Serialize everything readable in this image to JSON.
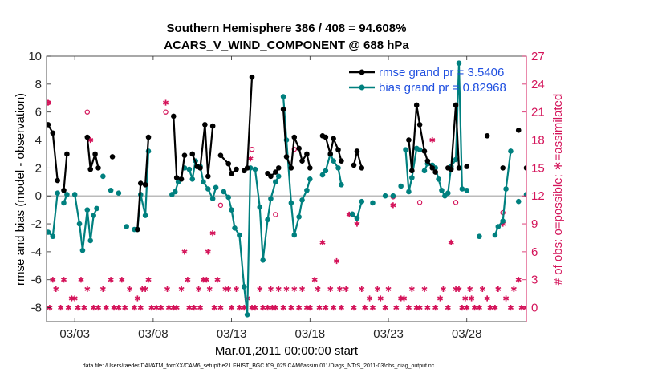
{
  "chart_data": {
    "type": "line",
    "title": "Southern Hemisphere 386 / 408 = 94.608%",
    "subtitle": "ACARS_V_WIND_COMPONENT @ 688 hPa",
    "xlabel": "Mar.01,2011 00:00:00 start",
    "ylabel": "rmse and bias (model - observation)",
    "y2label": "# of obs: o=possible; ∗=assimilated",
    "footnote": "data file: /Users/raeder/DAI/ATM_forcXX/CAM6_setup/f.e21.FHIST_BGC.f09_025.CAM6assim.011/Diags_NTrS_2011-03/obs_diag_output.nc",
    "xlim": [
      1.2,
      31.8
    ],
    "ylim": [
      -9,
      10
    ],
    "y2lim": [
      -1.5,
      27
    ],
    "x_tick_labels": [
      "03/03",
      "03/08",
      "03/13",
      "03/18",
      "03/23",
      "03/28"
    ],
    "x_ticks": [
      3,
      8,
      13,
      18,
      23,
      28
    ],
    "y_ticks": [
      -8,
      -6,
      -4,
      -2,
      0,
      2,
      4,
      6,
      8,
      10
    ],
    "y2_ticks": [
      0,
      3,
      6,
      9,
      12,
      15,
      18,
      21,
      24,
      27
    ],
    "zero_line": 0,
    "legend_position": "top-right",
    "colors": {
      "rmse": "#000000",
      "bias": "#00807f",
      "obs": "#d4145a",
      "zero_line": "#bbbbbb"
    },
    "series": [
      {
        "name": "rmse grand pr = 3.5406",
        "color": "#000000",
        "segments": [
          [
            [
              1.3,
              5.1
            ],
            [
              1.6,
              4.5
            ],
            [
              1.9,
              1.1
            ]
          ],
          [
            [
              2.3,
              0.4
            ],
            [
              2.5,
              3.0
            ]
          ],
          [
            [
              3.8,
              4.2
            ],
            [
              4.0,
              1.9
            ],
            [
              4.3,
              3.0
            ],
            [
              4.5,
              2.0
            ]
          ],
          [
            [
              5.4,
              2.8
            ]
          ],
          [
            [
              7.0,
              -2.4
            ],
            [
              7.2,
              0.9
            ],
            [
              7.5,
              0.8
            ],
            [
              7.7,
              4.2
            ]
          ],
          [
            [
              9.3,
              5.7
            ],
            [
              9.5,
              1.3
            ],
            [
              9.8,
              1.2
            ],
            [
              10.0,
              2.9
            ]
          ],
          [
            [
              10.5,
              3.0
            ],
            [
              10.8,
              2.1
            ],
            [
              11.0,
              2.0
            ],
            [
              11.3,
              5.1
            ],
            [
              11.5,
              1.4
            ],
            [
              11.8,
              5.0
            ]
          ],
          [
            [
              12.3,
              2.9
            ],
            [
              12.8,
              2.3
            ],
            [
              13.0,
              1.6
            ],
            [
              13.3,
              1.9
            ]
          ],
          [
            [
              13.8,
              1.8
            ],
            [
              14.0,
              2.0
            ],
            [
              14.3,
              8.5
            ]
          ],
          [
            [
              15.3,
              1.6
            ],
            [
              15.5,
              1.4
            ],
            [
              15.8,
              1.7
            ],
            [
              16.0,
              2.0
            ]
          ],
          [
            [
              16.3,
              6.2
            ],
            [
              16.5,
              2.8
            ],
            [
              16.8,
              2.0
            ],
            [
              17.0,
              4.2
            ],
            [
              17.3,
              3.4
            ],
            [
              17.5,
              2.5
            ],
            [
              17.8,
              3.0
            ],
            [
              18.0,
              2.0
            ]
          ],
          [
            [
              18.8,
              4.3
            ],
            [
              19.0,
              4.2
            ],
            [
              19.3,
              3.0
            ],
            [
              19.5,
              4.1
            ],
            [
              19.8,
              3.3
            ],
            [
              20.0,
              2.5
            ]
          ],
          [
            [
              20.8,
              2.2
            ],
            [
              21.0,
              3.2
            ],
            [
              21.3,
              2.0
            ]
          ],
          [
            [
              24.3,
              4.0
            ],
            [
              24.5,
              1.8
            ],
            [
              24.8,
              6.5
            ],
            [
              25.0,
              5.1
            ],
            [
              25.3,
              3.2
            ],
            [
              25.5,
              2.5
            ],
            [
              25.8,
              2.0
            ],
            [
              26.0,
              1.7
            ]
          ],
          [
            [
              26.8,
              2.0
            ],
            [
              27.0,
              1.9
            ],
            [
              27.3,
              6.5
            ],
            [
              27.5,
              2.0
            ]
          ],
          [
            [
              28.0,
              2.1
            ]
          ],
          [
            [
              29.3,
              4.3
            ]
          ],
          [
            [
              30.3,
              2.0
            ]
          ],
          [
            [
              31.3,
              4.7
            ]
          ],
          [
            [
              31.8,
              2.0
            ],
            [
              32.0,
              2.1
            ]
          ]
        ]
      },
      {
        "name": "bias grand pr = 0.82968",
        "color": "#00807f",
        "segments": [
          [
            [
              1.3,
              -2.6
            ],
            [
              1.6,
              -2.9
            ],
            [
              1.9,
              0.2
            ]
          ],
          [
            [
              2.3,
              -0.5
            ],
            [
              2.5,
              0.1
            ]
          ],
          [
            [
              3.0,
              0.1
            ],
            [
              3.3,
              -2.0
            ],
            [
              3.5,
              -3.9
            ],
            [
              3.8,
              -1.0
            ],
            [
              4.0,
              -3.2
            ],
            [
              4.2,
              -1.4
            ],
            [
              4.4,
              -0.9
            ]
          ],
          [
            [
              4.8,
              1.4
            ]
          ],
          [
            [
              5.3,
              0.4
            ]
          ],
          [
            [
              5.8,
              0.2
            ]
          ],
          [
            [
              6.3,
              -2.2
            ]
          ],
          [
            [
              6.8,
              -2.4
            ],
            [
              7.0,
              -2.4
            ],
            [
              7.2,
              0.1
            ],
            [
              7.5,
              -1.4
            ],
            [
              7.7,
              3.2
            ]
          ],
          [
            [
              9.2,
              0.1
            ],
            [
              9.4,
              0.3
            ],
            [
              9.6,
              1.0
            ]
          ],
          [
            [
              10.0,
              2.0
            ],
            [
              10.3,
              1.9
            ],
            [
              10.5,
              1.2
            ],
            [
              10.7,
              2.5
            ]
          ],
          [
            [
              11.0,
              2.1
            ],
            [
              11.2,
              1.0
            ],
            [
              11.5,
              0.5
            ],
            [
              11.8,
              -0.2
            ],
            [
              12.0,
              0.6
            ]
          ],
          [
            [
              12.5,
              0.3
            ],
            [
              12.8,
              -0.1
            ],
            [
              13.0,
              -1.0
            ],
            [
              13.2,
              -2.3
            ],
            [
              13.5,
              -2.8
            ],
            [
              13.8,
              -6.5
            ],
            [
              14.0,
              -8.5
            ],
            [
              14.2,
              2.0
            ]
          ],
          [
            [
              14.5,
              1.9
            ],
            [
              14.8,
              -0.8
            ],
            [
              15.0,
              -4.6
            ],
            [
              15.3,
              -1.7
            ],
            [
              15.5,
              -0.2
            ],
            [
              15.8,
              1.0
            ],
            [
              16.0,
              1.4
            ]
          ],
          [
            [
              16.3,
              7.1
            ],
            [
              16.5,
              4.0
            ],
            [
              16.8,
              -0.5
            ],
            [
              17.0,
              -2.8
            ],
            [
              17.3,
              -1.5
            ],
            [
              17.5,
              -0.3
            ],
            [
              17.8,
              0.4
            ],
            [
              18.0,
              1.2
            ]
          ],
          [
            [
              18.8,
              1.5
            ],
            [
              19.0,
              1.8
            ],
            [
              19.3,
              3.0
            ],
            [
              19.5,
              2.5
            ],
            [
              19.8,
              2.0
            ],
            [
              20.0,
              0.8
            ]
          ],
          [
            [
              20.7,
              -1.3
            ],
            [
              21.0,
              -1.6
            ],
            [
              21.3,
              -0.4
            ]
          ],
          [
            [
              22.0,
              -0.5
            ]
          ],
          [
            [
              22.8,
              0.0
            ]
          ],
          [
            [
              23.3,
              0.0
            ]
          ],
          [
            [
              23.8,
              0.7
            ]
          ],
          [
            [
              24.1,
              3.3
            ],
            [
              24.3,
              0.3
            ],
            [
              24.5,
              1.3
            ],
            [
              24.8,
              3.4
            ],
            [
              25.0,
              3.3
            ]
          ],
          [
            [
              25.3,
              1.8
            ],
            [
              25.5,
              2.3
            ],
            [
              25.8,
              2.2
            ]
          ],
          [
            [
              26.0,
              2.0
            ],
            [
              26.2,
              1.2
            ],
            [
              26.4,
              0.4
            ],
            [
              26.6,
              0.0
            ],
            [
              26.8,
              0.2
            ],
            [
              27.0,
              2.1
            ],
            [
              27.3,
              2.6
            ],
            [
              27.5,
              9.5
            ],
            [
              27.7,
              0.5
            ],
            [
              28.0,
              0.4
            ]
          ],
          [
            [
              28.8,
              -2.9
            ]
          ],
          [
            [
              29.8,
              -2.8
            ],
            [
              30.0,
              -2.2
            ],
            [
              30.3,
              -1.8
            ],
            [
              30.5,
              0.5
            ],
            [
              30.8,
              3.2
            ]
          ],
          [
            [
              31.3,
              -0.4
            ]
          ],
          [
            [
              31.8,
              0.1
            ],
            [
              32.0,
              -0.8
            ]
          ]
        ]
      }
    ],
    "obs_possible": [
      [
        1.3,
        22
      ],
      [
        3.8,
        21
      ],
      [
        8.8,
        21
      ],
      [
        12.3,
        11
      ],
      [
        14.3,
        17
      ],
      [
        15.8,
        10
      ],
      [
        17.0,
        17
      ],
      [
        20.7,
        10
      ],
      [
        23.3,
        11.9
      ],
      [
        25.0,
        11.3
      ],
      [
        27.3,
        11.3
      ],
      [
        30.3,
        10.2
      ]
    ],
    "obs_assimilated": [
      [
        1.3,
        22
      ],
      [
        1.4,
        0
      ],
      [
        1.6,
        3
      ],
      [
        1.8,
        2
      ],
      [
        2.1,
        0
      ],
      [
        2.3,
        3
      ],
      [
        2.6,
        0
      ],
      [
        2.8,
        1
      ],
      [
        3.0,
        1
      ],
      [
        3.2,
        0
      ],
      [
        3.4,
        3
      ],
      [
        3.6,
        0
      ],
      [
        3.8,
        2
      ],
      [
        4.0,
        18
      ],
      [
        4.2,
        0
      ],
      [
        4.5,
        0
      ],
      [
        4.8,
        2
      ],
      [
        5.0,
        0
      ],
      [
        5.3,
        3
      ],
      [
        5.5,
        0
      ],
      [
        5.8,
        0
      ],
      [
        6.0,
        3
      ],
      [
        6.2,
        0
      ],
      [
        6.5,
        2
      ],
      [
        6.8,
        0
      ],
      [
        7.0,
        1
      ],
      [
        7.2,
        0
      ],
      [
        7.3,
        2
      ],
      [
        7.5,
        2
      ],
      [
        7.7,
        3
      ],
      [
        7.9,
        0
      ],
      [
        8.2,
        0
      ],
      [
        8.5,
        0
      ],
      [
        8.8,
        22
      ],
      [
        8.9,
        2
      ],
      [
        9.0,
        0
      ],
      [
        9.3,
        0
      ],
      [
        9.5,
        0
      ],
      [
        9.8,
        2
      ],
      [
        10.0,
        6
      ],
      [
        10.2,
        3
      ],
      [
        10.3,
        0
      ],
      [
        10.6,
        0
      ],
      [
        10.9,
        2
      ],
      [
        11.0,
        0
      ],
      [
        11.2,
        3
      ],
      [
        11.4,
        3
      ],
      [
        11.5,
        6
      ],
      [
        11.6,
        2
      ],
      [
        11.8,
        8
      ],
      [
        11.9,
        0
      ],
      [
        12.1,
        3
      ],
      [
        12.3,
        0
      ],
      [
        12.6,
        2
      ],
      [
        12.8,
        2
      ],
      [
        13.0,
        0
      ],
      [
        13.3,
        2
      ],
      [
        13.5,
        0
      ],
      [
        13.8,
        0
      ],
      [
        14.0,
        1
      ],
      [
        14.2,
        16
      ],
      [
        14.3,
        0
      ],
      [
        14.5,
        0
      ],
      [
        14.8,
        2
      ],
      [
        15.0,
        0
      ],
      [
        15.3,
        0
      ],
      [
        15.5,
        2
      ],
      [
        15.6,
        0
      ],
      [
        15.8,
        0
      ],
      [
        16.0,
        2
      ],
      [
        16.3,
        0
      ],
      [
        16.5,
        2
      ],
      [
        16.8,
        0
      ],
      [
        17.0,
        2
      ],
      [
        17.3,
        0
      ],
      [
        17.5,
        2
      ],
      [
        17.8,
        0
      ],
      [
        18.0,
        0
      ],
      [
        18.3,
        3
      ],
      [
        18.5,
        2
      ],
      [
        18.6,
        0
      ],
      [
        18.8,
        7
      ],
      [
        19.0,
        0
      ],
      [
        19.3,
        2
      ],
      [
        19.5,
        0
      ],
      [
        19.7,
        5
      ],
      [
        19.9,
        2
      ],
      [
        20.0,
        0
      ],
      [
        20.3,
        2
      ],
      [
        20.5,
        10
      ],
      [
        20.8,
        0
      ],
      [
        21.0,
        9
      ],
      [
        21.3,
        2
      ],
      [
        21.5,
        0
      ],
      [
        21.8,
        1
      ],
      [
        22.0,
        0
      ],
      [
        22.3,
        2
      ],
      [
        22.5,
        1
      ],
      [
        22.8,
        0
      ],
      [
        23.0,
        2
      ],
      [
        23.3,
        11
      ],
      [
        23.5,
        0
      ],
      [
        23.8,
        1
      ],
      [
        24.0,
        1
      ],
      [
        24.3,
        0
      ],
      [
        24.5,
        2
      ],
      [
        24.8,
        0
      ],
      [
        25.0,
        0
      ],
      [
        25.3,
        2
      ],
      [
        25.5,
        0
      ],
      [
        25.8,
        18
      ],
      [
        26.0,
        0
      ],
      [
        26.3,
        1
      ],
      [
        26.5,
        2
      ],
      [
        26.8,
        0
      ],
      [
        27.0,
        7
      ],
      [
        27.3,
        2
      ],
      [
        27.5,
        2
      ],
      [
        27.7,
        0
      ],
      [
        27.9,
        1
      ],
      [
        28.0,
        0
      ],
      [
        28.2,
        2
      ],
      [
        28.3,
        1
      ],
      [
        28.5,
        0
      ],
      [
        28.8,
        0
      ],
      [
        29.0,
        2
      ],
      [
        29.3,
        1
      ],
      [
        29.5,
        0
      ],
      [
        29.8,
        0
      ],
      [
        30.0,
        2
      ],
      [
        30.3,
        9
      ],
      [
        30.5,
        1
      ],
      [
        30.8,
        0
      ],
      [
        31.0,
        2
      ],
      [
        31.3,
        3
      ],
      [
        31.5,
        0
      ],
      [
        31.8,
        0
      ]
    ]
  }
}
